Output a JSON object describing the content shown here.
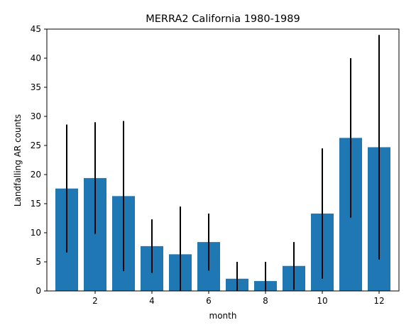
{
  "chart_data": {
    "type": "bar",
    "title": "MERRA2 California 1980-1989",
    "xlabel": "month",
    "ylabel": "Landfalling AR counts",
    "x": [
      1,
      2,
      3,
      4,
      5,
      6,
      7,
      8,
      9,
      10,
      11,
      12
    ],
    "values": [
      17.6,
      19.4,
      16.3,
      7.7,
      6.3,
      8.4,
      2.1,
      1.7,
      4.3,
      13.3,
      26.3,
      24.7
    ],
    "error": [
      11.0,
      9.6,
      12.9,
      4.6,
      8.2,
      4.9,
      2.9,
      3.3,
      4.1,
      11.2,
      13.7,
      19.3
    ],
    "xlim": [
      0.3,
      12.7
    ],
    "ylim": [
      0,
      45
    ],
    "xticks": [
      2,
      4,
      6,
      8,
      10,
      12
    ],
    "yticks": [
      0,
      5,
      10,
      15,
      20,
      25,
      30,
      35,
      40,
      45
    ],
    "bar_color": "#1f77b4",
    "error_color": "#000000",
    "grid": false
  }
}
